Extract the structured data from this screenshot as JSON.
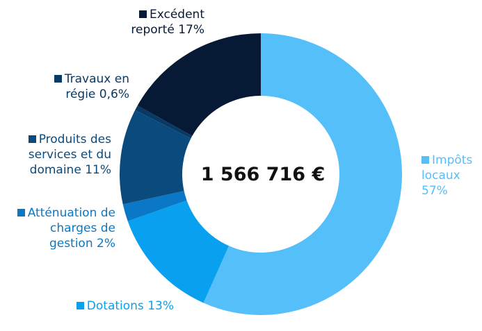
{
  "chart_data": {
    "type": "donut",
    "center_label": "1 566 716 €",
    "categories": [
      "Impôts locaux",
      "Dotations",
      "Atténuation de charges de gestion",
      "Produits des services et du domaine",
      "Travaux en régie",
      "Excédent reporté"
    ],
    "values": [
      57,
      13,
      2,
      11,
      0.6,
      17
    ],
    "value_labels": [
      "57%",
      "13%",
      "2%",
      "11%",
      "0,6%",
      "17%"
    ],
    "colors": [
      "#55bff9",
      "#0aa0f0",
      "#0a78c6",
      "#0a4a7c",
      "#083a66",
      "#071a35"
    ]
  }
}
